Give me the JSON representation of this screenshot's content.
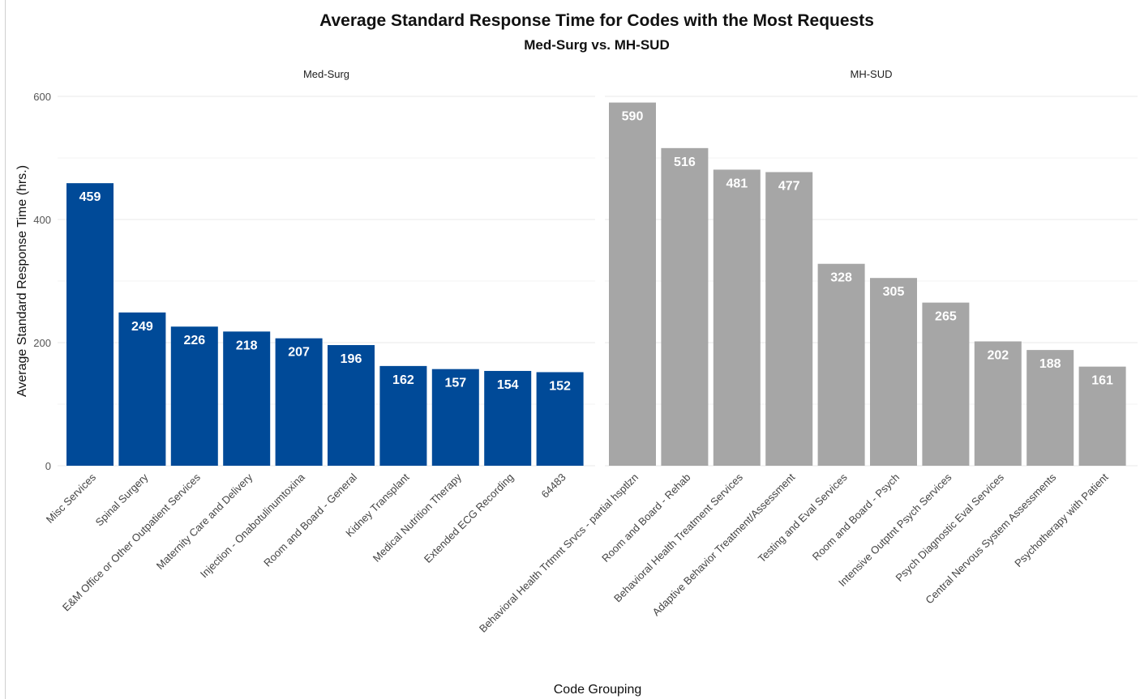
{
  "chart_data": {
    "type": "bar",
    "title": "Average Standard Response Time for Codes with the Most Requests",
    "subtitle": "Med-Surg vs. MH-SUD",
    "xlabel": "Code Grouping",
    "ylabel": "Average Standard Response Time (hrs.)",
    "ylim": [
      0,
      600
    ],
    "yticks": [
      0,
      200,
      400,
      600
    ],
    "grid": true,
    "facets": [
      {
        "name": "Med-Surg",
        "color": "#004a98",
        "categories": [
          "Misc Services",
          "Spinal Surgery",
          "E&M Office or Other Outpatient Services",
          "Maternity Care and Delivery",
          "Injection - Onabotulinumtoxina",
          "Room and Board - General",
          "Kidney Transplant",
          "Medical Nutrition Therapy",
          "Extended ECG Recording",
          "64483"
        ],
        "values": [
          459,
          249,
          226,
          218,
          207,
          196,
          162,
          157,
          154,
          152
        ]
      },
      {
        "name": "MH-SUD",
        "color": "#a6a6a6",
        "categories": [
          "Behavioral Health Trtmnt Srvcs - partial hsptlzn",
          "Room and Board - Rehab",
          "Behavioral Health Treatment Services",
          "Adaptive Behavior Treatment/Assessment",
          "Testing and Eval Services",
          "Room and Board - Psych",
          "Intensive Outptnt Psych Services",
          "Psych Diagnostic Eval Services",
          "Central Nervous System Assessments",
          "Psychotherapy with Patient"
        ],
        "values": [
          590,
          516,
          481,
          477,
          328,
          305,
          265,
          202,
          188,
          161
        ]
      }
    ]
  }
}
